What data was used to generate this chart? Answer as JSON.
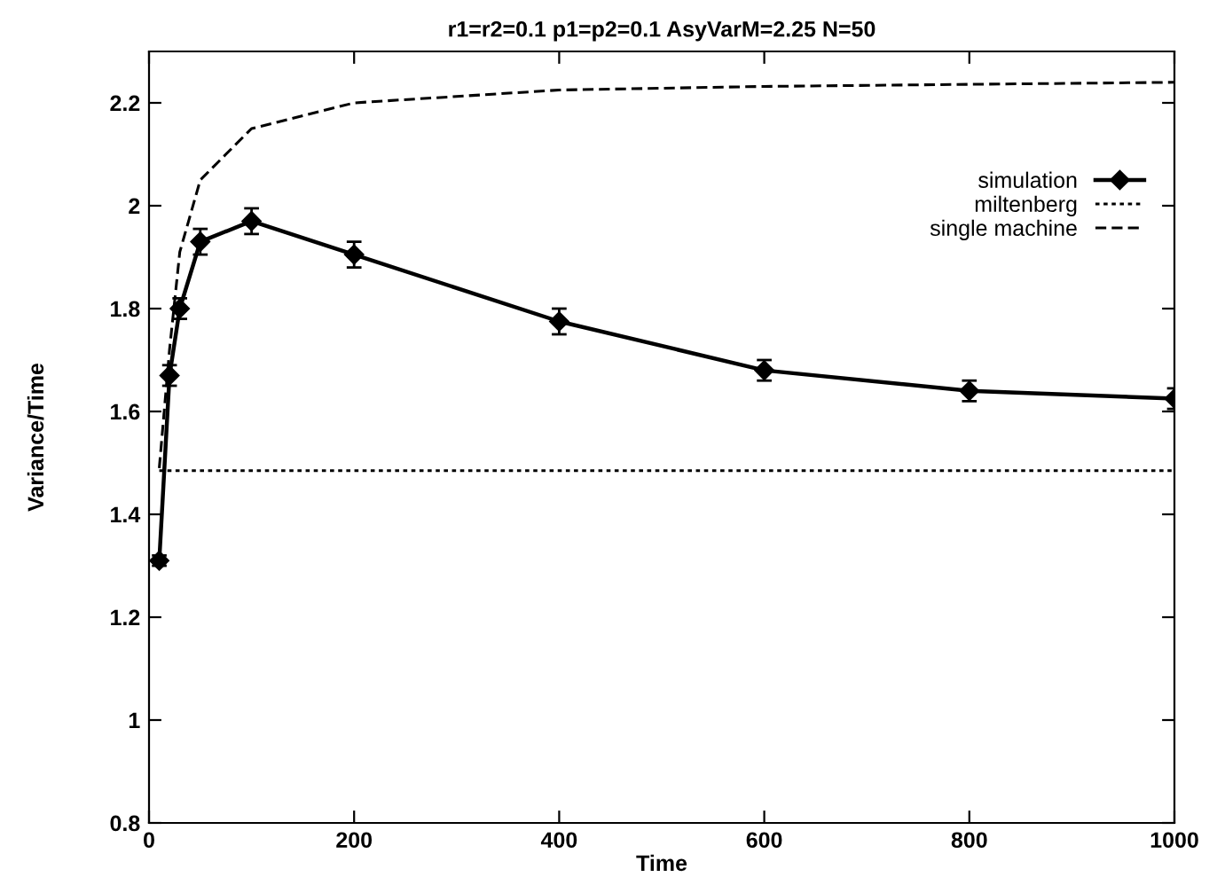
{
  "chart_data": {
    "type": "line",
    "title": "r1=r2=0.1 p1=p2=0.1 AsyVarM=2.25 N=50",
    "xlabel": "Time",
    "ylabel": "Variance/Time",
    "xlim": [
      0,
      1000
    ],
    "xticks": [
      0,
      200,
      400,
      600,
      800,
      1000
    ],
    "ylim": [
      0.8,
      2.3
    ],
    "yticks": [
      0.8,
      {
        "value": 1,
        "label": "1"
      },
      1.2,
      1.4,
      1.6,
      1.8,
      {
        "value": 2,
        "label": "2"
      },
      2.2
    ],
    "legend": "top right",
    "grid": false,
    "series": [
      {
        "name": "simulation",
        "color": "#000000",
        "x": [
          10,
          20,
          30,
          50,
          100,
          200,
          400,
          600,
          800,
          1000
        ],
        "values": [
          1.31,
          1.67,
          1.8,
          1.93,
          1.97,
          1.905,
          1.775,
          1.68,
          1.64,
          1.625
        ],
        "errors": [
          0.01,
          0.02,
          0.02,
          0.025,
          0.025,
          0.025,
          0.025,
          0.02,
          0.02,
          0.02
        ],
        "marker": "diamond",
        "line_style": "solid"
      },
      {
        "name": "miltenberg",
        "color": "#000000",
        "x": [
          10,
          1000
        ],
        "values": [
          1.485,
          1.485
        ],
        "marker": "none",
        "line_style": "dotted"
      },
      {
        "name": "single machine",
        "color": "#000000",
        "x": [
          10,
          20,
          30,
          50,
          100,
          200,
          400,
          600,
          800,
          1000
        ],
        "values": [
          1.49,
          1.72,
          1.91,
          2.05,
          2.15,
          2.2,
          2.225,
          2.232,
          2.236,
          2.24
        ],
        "marker": "none",
        "line_style": "dashed"
      }
    ]
  }
}
